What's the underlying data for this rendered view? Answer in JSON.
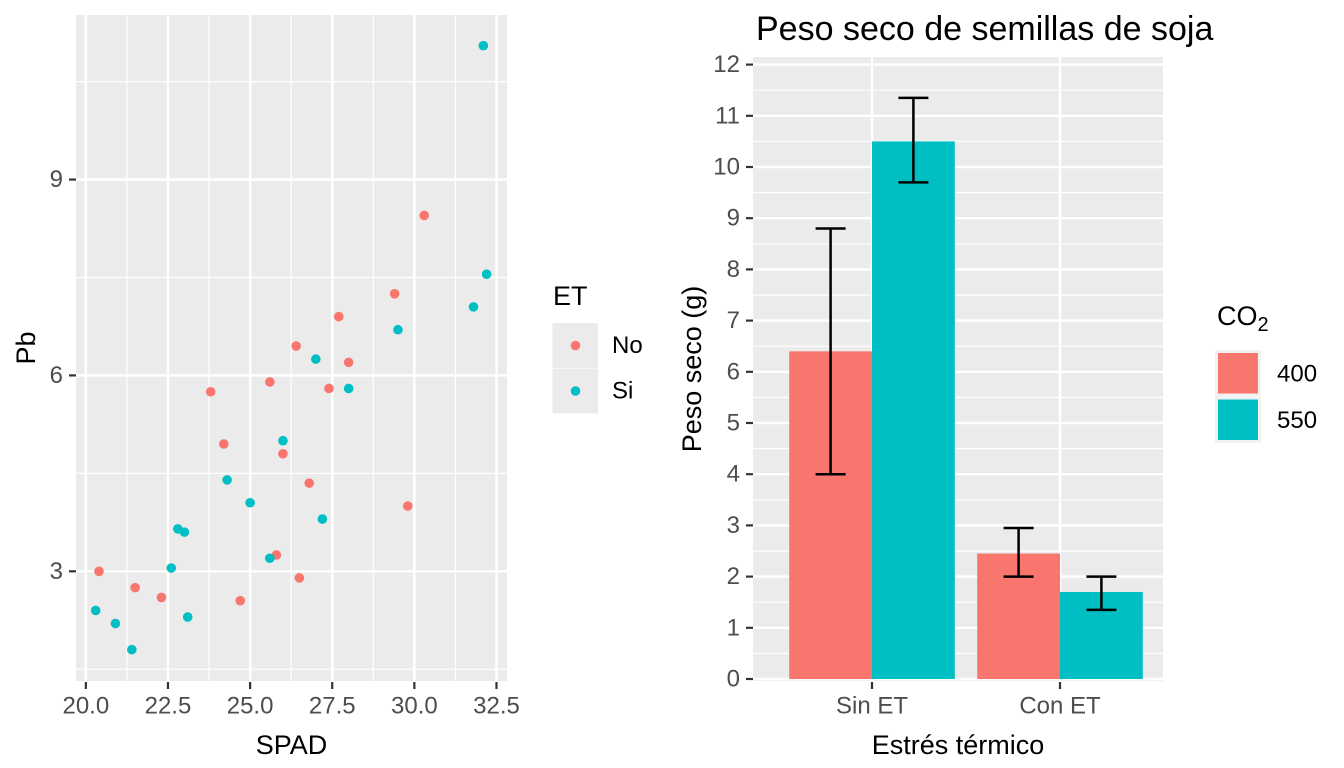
{
  "page": {
    "background": "#FFFFFF"
  },
  "colors": {
    "panel_bg": "#EBEBEB",
    "grid": "#FFFFFF",
    "tick_mark": "#333333",
    "tick_label": "#4D4D4D",
    "text": "#000000",
    "group_no_400": "#F8766D",
    "group_si_550": "#00BFC4",
    "errorbar": "#000000"
  },
  "chart_data": [
    {
      "type": "scatter",
      "title": "",
      "xlabel": "SPAD",
      "ylabel": "Pb",
      "xlim": [
        19.7,
        32.82
      ],
      "ylim": [
        -0.04,
        12.15
      ],
      "ylim_scatter": [
        1.32,
        11.52
      ],
      "x_tick_labels": [
        "20.0",
        "22.5",
        "25.0",
        "27.5",
        "30.0",
        "32.5"
      ],
      "x_tick_values": [
        20,
        22.5,
        25,
        27.5,
        30,
        32.5
      ],
      "x_minor_values": [
        21.25,
        23.75,
        26.25,
        28.75,
        31.25
      ],
      "y_tick_labels": [
        "3",
        "6",
        "9"
      ],
      "y_tick_values": [
        3,
        6,
        9
      ],
      "y_minor_values": [
        1.5,
        4.5,
        7.5,
        10.5
      ],
      "grid": true,
      "legend": {
        "title": "ET",
        "position": "right",
        "entries": [
          {
            "label": "No",
            "color": "#F8766D"
          },
          {
            "label": "Si",
            "color": "#00BFC4"
          }
        ]
      },
      "series": [
        {
          "name": "No",
          "color": "#F8766D",
          "points": [
            [
              20.4,
              3.0
            ],
            [
              21.5,
              2.75
            ],
            [
              22.3,
              2.6
            ],
            [
              23.8,
              5.75
            ],
            [
              24.2,
              4.95
            ],
            [
              24.7,
              2.55
            ],
            [
              25.6,
              5.9
            ],
            [
              25.8,
              3.25
            ],
            [
              26.0,
              4.8
            ],
            [
              26.4,
              6.45
            ],
            [
              26.5,
              2.9
            ],
            [
              26.8,
              4.35
            ],
            [
              27.4,
              5.8
            ],
            [
              27.7,
              6.9
            ],
            [
              28.0,
              6.2
            ],
            [
              29.4,
              7.25
            ],
            [
              29.8,
              4.0
            ],
            [
              30.3,
              8.45
            ]
          ]
        },
        {
          "name": "Si",
          "color": "#00BFC4",
          "points": [
            [
              20.3,
              2.4
            ],
            [
              20.9,
              2.2
            ],
            [
              21.4,
              1.8
            ],
            [
              22.6,
              3.05
            ],
            [
              22.8,
              3.65
            ],
            [
              23.0,
              3.6
            ],
            [
              23.1,
              2.3
            ],
            [
              24.3,
              4.4
            ],
            [
              25.0,
              4.05
            ],
            [
              25.6,
              3.2
            ],
            [
              26.0,
              5.0
            ],
            [
              27.0,
              6.25
            ],
            [
              27.2,
              3.8
            ],
            [
              28.0,
              5.8
            ],
            [
              29.5,
              6.7
            ],
            [
              31.8,
              7.05
            ],
            [
              32.1,
              11.05
            ],
            [
              32.2,
              7.55
            ]
          ]
        }
      ]
    },
    {
      "type": "bar",
      "title": "Peso seco de semillas de soja",
      "xlabel": "Estrés térmico",
      "ylabel": "Peso seco (g)",
      "categories": [
        "Sin ET",
        "Con ET"
      ],
      "y_tick_labels": [
        "0",
        "1",
        "2",
        "3",
        "4",
        "5",
        "6",
        "7",
        "8",
        "9",
        "10",
        "11",
        "12"
      ],
      "y_tick_values": [
        0,
        1,
        2,
        3,
        4,
        5,
        6,
        7,
        8,
        9,
        10,
        11,
        12
      ],
      "y_minor_step": 0.5,
      "ylim": [
        -0.04,
        12.15
      ],
      "grid": true,
      "legend": {
        "title": "CO",
        "title_subscript": "2",
        "position": "right",
        "entries": [
          {
            "label": "400",
            "color": "#F8766D"
          },
          {
            "label": "550",
            "color": "#00BFC4"
          }
        ]
      },
      "series": [
        {
          "name": "400",
          "color": "#F8766D",
          "values": [
            6.4,
            2.45
          ],
          "error_low": [
            4.0,
            2.0
          ],
          "error_high": [
            8.8,
            2.95
          ]
        },
        {
          "name": "550",
          "color": "#00BFC4",
          "values": [
            10.5,
            1.7
          ],
          "error_low": [
            9.7,
            1.35
          ],
          "error_high": [
            11.35,
            2.0
          ]
        }
      ]
    }
  ]
}
